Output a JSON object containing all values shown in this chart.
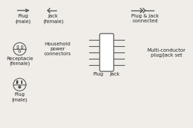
{
  "bg_color": "#f0ede8",
  "line_color": "#555555",
  "text_color": "#222222",
  "font_size": 5.0,
  "plug_male_label": "Plug\n(male)",
  "jack_female_label": "Jack\n(female)",
  "plug_jack_connected_label": "Plug & Jack\nconnected",
  "receptacle_female_label": "Receptacle\n(female)",
  "household_label": "Household\npower\nconnectors",
  "plug_male2_label": "Plug\n(male)",
  "plug_label": "Plug",
  "jack_label": "Jack",
  "multi_conductor_label": "Multi-conductor\nplug/jack set"
}
